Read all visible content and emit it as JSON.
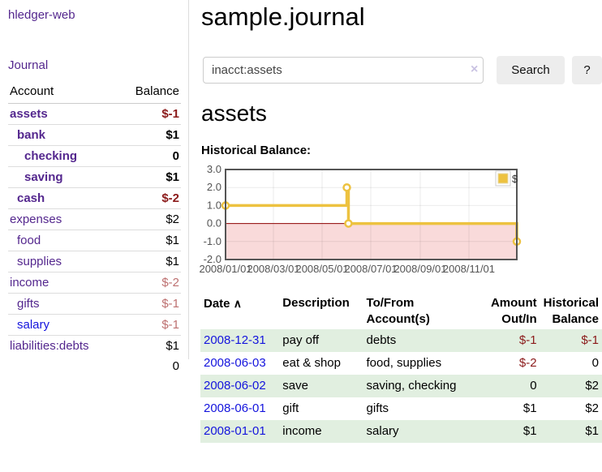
{
  "app": {
    "title": "hledger-web"
  },
  "colors": {
    "link_purple": "#54278e",
    "link_blue": "#1414dd",
    "negative_strong": "#8b1a1a",
    "negative_soft": "#bd7070",
    "row_green": "#e1efe0",
    "chart_gold": "#edc240",
    "chart_negative_area": "#f9dada",
    "chart_zero_line": "#8b0000",
    "button_bg": "#ededed"
  },
  "sidebar": {
    "journal_link": "Journal",
    "accounts": {
      "account_header": "Account",
      "balance_header": "Balance",
      "rows": [
        {
          "name": "assets",
          "balance": "$-1",
          "level": 1,
          "bold": true,
          "link_color": "purple",
          "balance_class": "neg"
        },
        {
          "name": "bank",
          "balance": "$1",
          "level": 2,
          "bold": true,
          "link_color": "purple",
          "balance_class": ""
        },
        {
          "name": "checking",
          "balance": "0",
          "level": 3,
          "bold": true,
          "link_color": "purple",
          "balance_class": ""
        },
        {
          "name": "saving",
          "balance": "$1",
          "level": 3,
          "bold": true,
          "link_color": "purple",
          "balance_class": ""
        },
        {
          "name": "cash",
          "balance": "$-2",
          "level": 2,
          "bold": true,
          "link_color": "purple",
          "balance_class": "neg"
        },
        {
          "name": "expenses",
          "balance": "$2",
          "level": 1,
          "bold": false,
          "link_color": "purple",
          "balance_class": ""
        },
        {
          "name": "food",
          "balance": "$1",
          "level": 2,
          "bold": false,
          "link_color": "purple",
          "balance_class": ""
        },
        {
          "name": "supplies",
          "balance": "$1",
          "level": 2,
          "bold": false,
          "link_color": "purple",
          "balance_class": ""
        },
        {
          "name": "income",
          "balance": "$-2",
          "level": 1,
          "bold": false,
          "link_color": "purple",
          "balance_class": "negsoft"
        },
        {
          "name": "gifts",
          "balance": "$-1",
          "level": 2,
          "bold": false,
          "link_color": "purple",
          "balance_class": "negsoft"
        },
        {
          "name": "salary",
          "balance": "$-1",
          "level": 2,
          "bold": false,
          "link_color": "blue",
          "balance_class": "negsoft"
        },
        {
          "name": "liabilities:debts",
          "balance": "$1",
          "level": 1,
          "bold": false,
          "link_color": "purple",
          "balance_class": ""
        }
      ],
      "total": "0"
    }
  },
  "main": {
    "title": "sample.journal",
    "search": {
      "value": "inacct:assets",
      "clear_icon": "×",
      "search_button": "Search",
      "help_button": "?"
    },
    "account_heading": "assets",
    "chart_label": "Historical Balance:"
  },
  "chart_data": {
    "type": "line",
    "title": "Historical Balance",
    "legend": {
      "label": "$",
      "position": "top-right"
    },
    "step": true,
    "series": [
      {
        "name": "$",
        "color": "#edc240",
        "points": [
          {
            "x": "2008-01-01",
            "y": 1
          },
          {
            "x": "2008-06-01",
            "y": 2
          },
          {
            "x": "2008-06-03",
            "y": 0
          },
          {
            "x": "2008-12-31",
            "y": -1
          }
        ]
      }
    ],
    "x_range": [
      "2008-01-01",
      "2008-12-31"
    ],
    "ylim": [
      -2,
      3
    ],
    "y_ticks": [
      "3.0",
      "2.0",
      "1.0",
      "0.0",
      "-1.0",
      "-2.0"
    ],
    "x_ticks": [
      {
        "label": "2008/01/01",
        "date": "2008-01-01"
      },
      {
        "label": "2008/03/01",
        "date": "2008-03-01"
      },
      {
        "label": "2008/05/01",
        "date": "2008-05-01"
      },
      {
        "label": "2008/07/01",
        "date": "2008-07-01"
      },
      {
        "label": "2008/09/01",
        "date": "2008-09-01"
      },
      {
        "label": "2008/11/01",
        "date": "2008-11-01"
      }
    ],
    "grid": true,
    "zero_line_color": "#8b0000",
    "negative_area_color": "#f9dada"
  },
  "transactions": {
    "headers": {
      "date": "Date",
      "sort_icon": "∧",
      "description": "Description",
      "accounts": "To/From Account(s)",
      "amount": "Amount Out/In",
      "balance": "Historical Balance"
    },
    "rows": [
      {
        "date": "2008-12-31",
        "description": "pay off",
        "accounts": "debts",
        "amount": "$-1",
        "amount_class": "neg",
        "balance": "$-1",
        "balance_class": "neg"
      },
      {
        "date": "2008-06-03",
        "description": "eat & shop",
        "accounts": "food, supplies",
        "amount": "$-2",
        "amount_class": "neg",
        "balance": "0",
        "balance_class": ""
      },
      {
        "date": "2008-06-02",
        "description": "save",
        "accounts": "saving, checking",
        "amount": "0",
        "amount_class": "",
        "balance": "$2",
        "balance_class": ""
      },
      {
        "date": "2008-06-01",
        "description": "gift",
        "accounts": "gifts",
        "amount": "$1",
        "amount_class": "",
        "balance": "$2",
        "balance_class": ""
      },
      {
        "date": "2008-01-01",
        "description": "income",
        "accounts": "salary",
        "amount": "$1",
        "amount_class": "",
        "balance": "$1",
        "balance_class": ""
      }
    ]
  }
}
